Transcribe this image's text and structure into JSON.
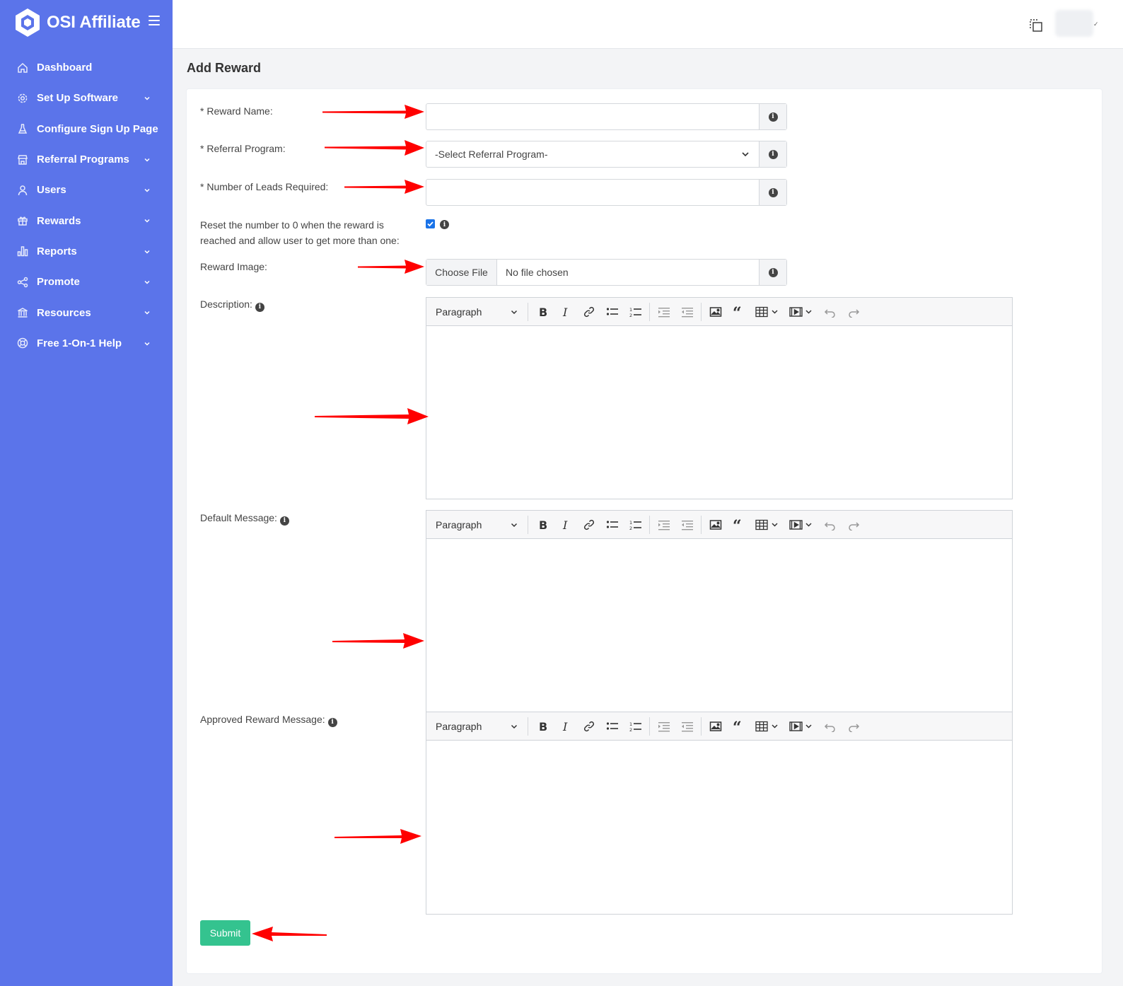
{
  "app": {
    "brand": "OSI Affiliate"
  },
  "sidebar": {
    "items": [
      {
        "label": "Dashboard",
        "icon": "home-icon",
        "expandable": false
      },
      {
        "label": "Set Up Software",
        "icon": "gear-icon",
        "expandable": true
      },
      {
        "label": "Configure Sign Up Page",
        "icon": "flask-icon",
        "expandable": false
      },
      {
        "label": "Referral Programs",
        "icon": "store-icon",
        "expandable": true
      },
      {
        "label": "Users",
        "icon": "user-icon",
        "expandable": true
      },
      {
        "label": "Rewards",
        "icon": "gift-icon",
        "expandable": true
      },
      {
        "label": "Reports",
        "icon": "bar-chart-icon",
        "expandable": true
      },
      {
        "label": "Promote",
        "icon": "share-icon",
        "expandable": true
      },
      {
        "label": "Resources",
        "icon": "bank-icon",
        "expandable": true
      },
      {
        "label": "Free 1-On-1 Help",
        "icon": "lifebuoy-icon",
        "expandable": true
      }
    ]
  },
  "page": {
    "title": "Add Reward"
  },
  "form": {
    "reward_name": {
      "label": "* Reward Name:",
      "value": ""
    },
    "referral_program": {
      "label": "* Referral Program:",
      "selected": "-Select Referral Program-"
    },
    "leads_required": {
      "label": "* Number of Leads Required:",
      "value": ""
    },
    "reset": {
      "label_line1": "Reset the number to 0 when the reward is",
      "label_line2": "reached and allow user to get more than one:",
      "checked": true
    },
    "reward_image": {
      "label": "Reward Image:",
      "button": "Choose File",
      "status": "No file chosen"
    },
    "description": {
      "label": "Description:"
    },
    "default_message": {
      "label": "Default Message:"
    },
    "approved_message": {
      "label": "Approved Reward Message:"
    },
    "editor": {
      "block_format": "Paragraph"
    },
    "submit": "Submit"
  },
  "colors": {
    "sidebar": "#5b74ea",
    "submit": "#34c38f",
    "annotation_arrow": "#ff0000",
    "checkbox": "#1a73e8"
  }
}
